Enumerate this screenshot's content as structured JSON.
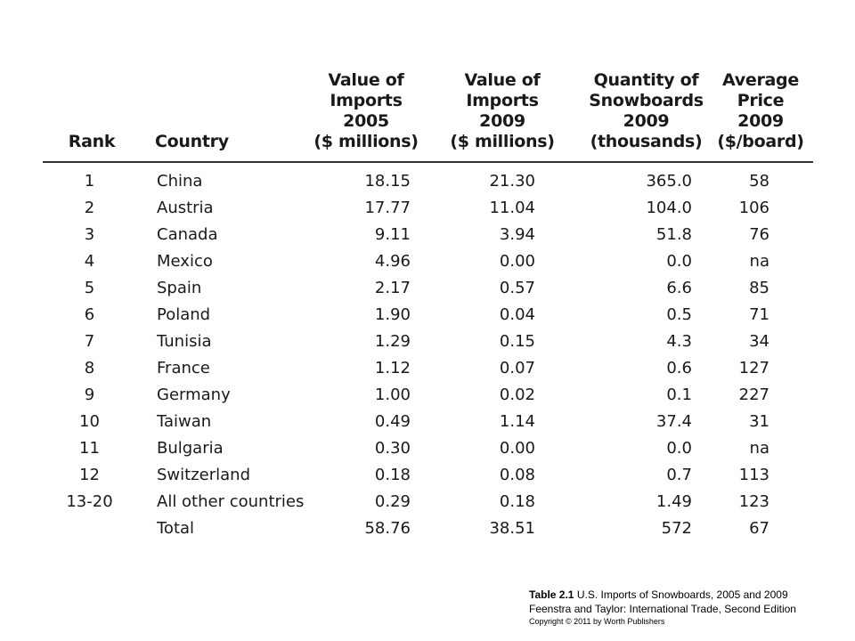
{
  "table": {
    "headers": {
      "rank": [
        "Rank"
      ],
      "country": [
        "Country"
      ],
      "v05": [
        "Value of",
        "Imports",
        "2005",
        "($ millions)"
      ],
      "v09": [
        "Value of",
        "Imports",
        "2009",
        "($ millions)"
      ],
      "qty": [
        "Quantity of",
        "Snowboards",
        "2009",
        "(thousands)"
      ],
      "price": [
        "Average",
        "Price",
        "2009",
        "($/board)"
      ]
    },
    "rows": [
      {
        "rank": "1",
        "country": "China",
        "v05": "18.15",
        "v09": "21.30",
        "qty": "365.0",
        "price": "58"
      },
      {
        "rank": "2",
        "country": "Austria",
        "v05": "17.77",
        "v09": "11.04",
        "qty": "104.0",
        "price": "106"
      },
      {
        "rank": "3",
        "country": "Canada",
        "v05": "9.11",
        "v09": "3.94",
        "qty": "51.8",
        "price": "76"
      },
      {
        "rank": "4",
        "country": "Mexico",
        "v05": "4.96",
        "v09": "0.00",
        "qty": "0.0",
        "price": "na"
      },
      {
        "rank": "5",
        "country": "Spain",
        "v05": "2.17",
        "v09": "0.57",
        "qty": "6.6",
        "price": "85"
      },
      {
        "rank": "6",
        "country": "Poland",
        "v05": "1.90",
        "v09": "0.04",
        "qty": "0.5",
        "price": "71"
      },
      {
        "rank": "7",
        "country": "Tunisia",
        "v05": "1.29",
        "v09": "0.15",
        "qty": "4.3",
        "price": "34"
      },
      {
        "rank": "8",
        "country": "France",
        "v05": "1.12",
        "v09": "0.07",
        "qty": "0.6",
        "price": "127"
      },
      {
        "rank": "9",
        "country": "Germany",
        "v05": "1.00",
        "v09": "0.02",
        "qty": "0.1",
        "price": "227"
      },
      {
        "rank": "10",
        "country": "Taiwan",
        "v05": "0.49",
        "v09": "1.14",
        "qty": "37.4",
        "price": "31"
      },
      {
        "rank": "11",
        "country": "Bulgaria",
        "v05": "0.30",
        "v09": "0.00",
        "qty": "0.0",
        "price": "na"
      },
      {
        "rank": "12",
        "country": "Switzerland",
        "v05": "0.18",
        "v09": "0.08",
        "qty": "0.7",
        "price": "113"
      },
      {
        "rank": "13-20",
        "country": "All other countries",
        "v05": "0.29",
        "v09": "0.18",
        "qty": "1.49",
        "price": "123"
      },
      {
        "rank": "",
        "country": "Total",
        "v05": "58.76",
        "v09": "38.51",
        "qty": "572",
        "price": "67"
      }
    ]
  },
  "caption": {
    "label": "Table 2.1",
    "title": "U.S. Imports of Snowboards, 2005 and 2009",
    "source": "Feenstra and Taylor: International Trade, Second Edition",
    "copyright": "Copyright © 2011 by Worth Publishers"
  }
}
